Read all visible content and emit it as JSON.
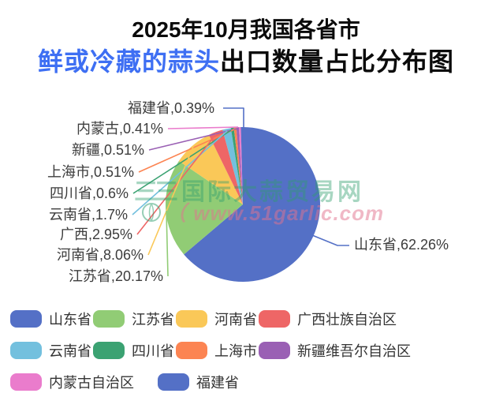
{
  "title": {
    "line1": "2025年10月我国各省市",
    "line2_highlight": "鲜或冷藏的蒜头",
    "line2_rest": "出口数量占比分布图",
    "highlight_color": "#3e6ff3"
  },
  "chart_data": {
    "type": "pie",
    "title": "2025年10月我国各省市鲜或冷藏的蒜头出口数量占比分布图",
    "unit": "%",
    "legend_position": "bottom",
    "series": [
      {
        "name": "山东省",
        "value": 62.26,
        "color": "#5470c6"
      },
      {
        "name": "江苏省",
        "value": 20.17,
        "color": "#91cc75"
      },
      {
        "name": "河南省",
        "value": 8.06,
        "color": "#fac858"
      },
      {
        "name": "广西壮族自治区",
        "value": 2.95,
        "color": "#ee6666"
      },
      {
        "name": "云南省",
        "value": 1.7,
        "color": "#73c0de"
      },
      {
        "name": "四川省",
        "value": 0.6,
        "color": "#3ba272"
      },
      {
        "name": "上海市",
        "value": 0.51,
        "color": "#fc8452"
      },
      {
        "name": "新疆维吾尔自治区",
        "value": 0.51,
        "color": "#9a60b4"
      },
      {
        "name": "内蒙古自治区",
        "value": 0.41,
        "color": "#ea7ccc"
      },
      {
        "name": "福建省",
        "value": 0.39,
        "color": "#5470c6"
      }
    ],
    "callouts": [
      {
        "text": "福建省,0.39%",
        "color": "#5470c6"
      },
      {
        "text": "内蒙古,0.41%",
        "color": "#ea7ccc"
      },
      {
        "text": "新疆,0.51%",
        "color": "#9a60b4"
      },
      {
        "text": "上海市,0.51%",
        "color": "#fc8452"
      },
      {
        "text": "四川省,0.6%",
        "color": "#3ba272"
      },
      {
        "text": "云南省,1.7%",
        "color": "#73c0de"
      },
      {
        "text": "广西,2.95%",
        "color": "#ee6666"
      },
      {
        "text": "河南省,8.06%",
        "color": "#fac858"
      },
      {
        "text": "江苏省,20.17%",
        "color": "#91cc75"
      },
      {
        "text": "山东省,62.26%",
        "color": "#5470c6"
      }
    ]
  },
  "legend": {
    "items": [
      {
        "label": "山东省",
        "color": "#5470c6"
      },
      {
        "label": "江苏省",
        "color": "#91cc75"
      },
      {
        "label": "河南省",
        "color": "#fac858"
      },
      {
        "label": "广西壮族自治区",
        "color": "#ee6666"
      },
      {
        "label": "云南省",
        "color": "#73c0de"
      },
      {
        "label": "四川省",
        "color": "#3ba272"
      },
      {
        "label": "上海市",
        "color": "#fc8452"
      },
      {
        "label": "新疆维吾尔自治区",
        "color": "#9a60b4"
      },
      {
        "label": "内蒙古自治区",
        "color": "#ea7ccc"
      },
      {
        "label": "福建省",
        "color": "#5470c6"
      }
    ]
  },
  "watermark": {
    "logo": "三三",
    "line1": "国际大蒜贸易网",
    "line2": "（ www.51garlic.com",
    "green": "#2f9e6e",
    "pink": "#e2738f"
  }
}
